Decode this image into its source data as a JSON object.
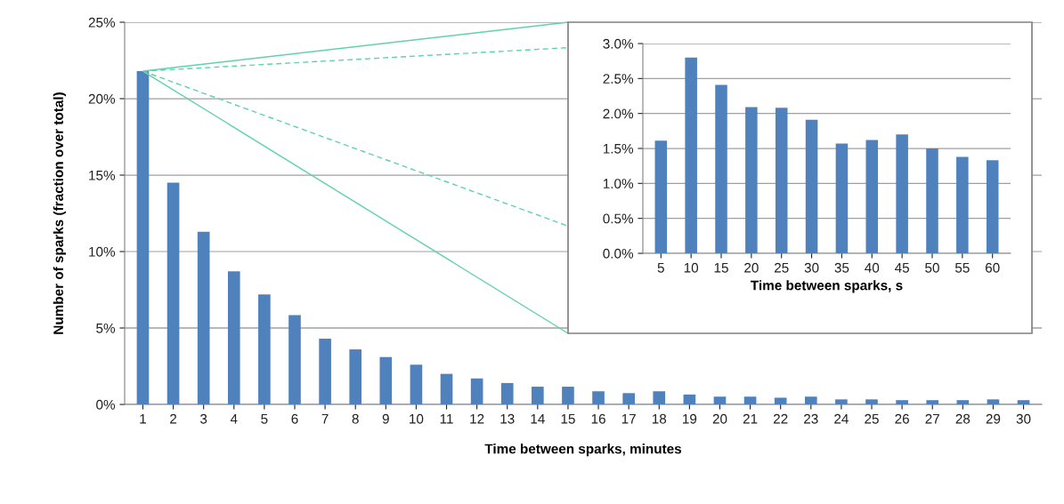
{
  "chart_data": [
    {
      "type": "bar",
      "xlabel": "Time between sparks, minutes",
      "ylabel": "Number of sparks (fraction over total)",
      "categories": [
        "1",
        "2",
        "3",
        "4",
        "5",
        "6",
        "7",
        "8",
        "9",
        "10",
        "11",
        "12",
        "13",
        "14",
        "15",
        "16",
        "17",
        "18",
        "19",
        "20",
        "21",
        "22",
        "23",
        "24",
        "25",
        "26",
        "27",
        "28",
        "29",
        "30"
      ],
      "values": [
        21.8,
        14.5,
        11.3,
        8.7,
        7.2,
        5.85,
        4.3,
        3.6,
        3.1,
        2.6,
        2.0,
        1.7,
        1.4,
        1.16,
        1.16,
        0.86,
        0.74,
        0.86,
        0.65,
        0.51,
        0.51,
        0.44,
        0.51,
        0.33,
        0.33,
        0.28,
        0.28,
        0.28,
        0.33,
        0.28
      ],
      "color": "#4f81bd",
      "ylim": [
        0,
        25
      ],
      "yticks": [
        {
          "value": 0,
          "label": "0%"
        },
        {
          "value": 5,
          "label": "5%"
        },
        {
          "value": 10,
          "label": "10%"
        },
        {
          "value": 15,
          "label": "15%"
        },
        {
          "value": 20,
          "label": "20%"
        },
        {
          "value": 25,
          "label": "25%"
        }
      ],
      "grid": "y",
      "legend": false
    },
    {
      "type": "bar",
      "xlabel": "Time between sparks, s",
      "categories": [
        "5",
        "10",
        "15",
        "20",
        "25",
        "30",
        "35",
        "40",
        "45",
        "50",
        "55",
        "60"
      ],
      "values": [
        1.61,
        2.8,
        2.41,
        2.09,
        2.08,
        1.91,
        1.57,
        1.62,
        1.7,
        1.5,
        1.38,
        1.33
      ],
      "color": "#4f81bd",
      "ylim": [
        0,
        3
      ],
      "yticks": [
        {
          "value": 0,
          "label": "0.0%"
        },
        {
          "value": 0.5,
          "label": "0.5%"
        },
        {
          "value": 1,
          "label": "1.0%"
        },
        {
          "value": 1.5,
          "label": "1.5%"
        },
        {
          "value": 2,
          "label": "2.0%"
        },
        {
          "value": 2.5,
          "label": "2.5%"
        },
        {
          "value": 3,
          "label": "3.0%"
        }
      ],
      "grid": "y",
      "legend": false
    }
  ]
}
